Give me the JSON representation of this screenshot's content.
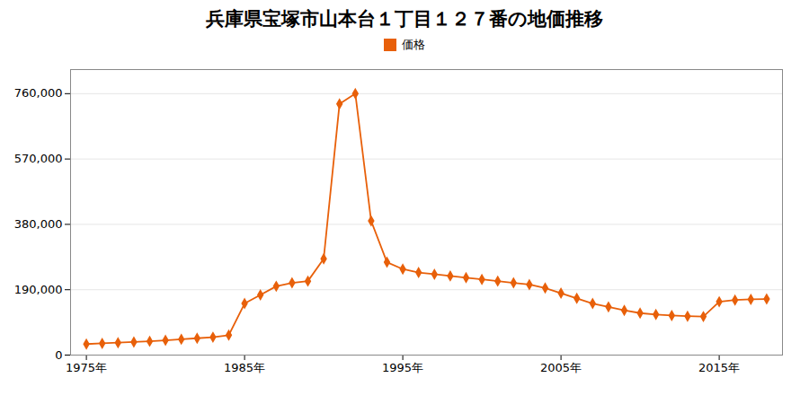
{
  "chart_data": {
    "type": "line",
    "title": "兵庫県宝塚市山本台１丁目１２７番の地価推移",
    "x": [
      1975,
      1976,
      1977,
      1978,
      1979,
      1980,
      1981,
      1982,
      1983,
      1984,
      1985,
      1986,
      1987,
      1988,
      1989,
      1990,
      1991,
      1992,
      1993,
      1994,
      1995,
      1996,
      1997,
      1998,
      1999,
      2000,
      2001,
      2002,
      2003,
      2004,
      2005,
      2006,
      2007,
      2008,
      2009,
      2010,
      2011,
      2012,
      2013,
      2014,
      2015,
      2016,
      2017,
      2018
    ],
    "series": [
      {
        "name": "価格",
        "color": "#e8600a",
        "marker": "diamond",
        "values": [
          32000,
          34000,
          36000,
          38000,
          40000,
          43000,
          46000,
          49000,
          52000,
          58000,
          150000,
          175000,
          200000,
          210000,
          215000,
          280000,
          730000,
          760000,
          390000,
          270000,
          250000,
          240000,
          235000,
          230000,
          225000,
          220000,
          215000,
          210000,
          205000,
          195000,
          180000,
          165000,
          150000,
          140000,
          130000,
          122000,
          118000,
          115000,
          113000,
          112000,
          155000,
          160000,
          162000,
          163000
        ]
      }
    ],
    "xlim": [
      1974,
      2019
    ],
    "xticks": [
      {
        "value": 1975,
        "label": "1975年"
      },
      {
        "value": 1985,
        "label": "1985年"
      },
      {
        "value": 1995,
        "label": "1995年"
      },
      {
        "value": 2005,
        "label": "2005年"
      },
      {
        "value": 2015,
        "label": "2015年"
      }
    ],
    "ylim": [
      0,
      830000
    ],
    "yticks": [
      0,
      {
        "value": 190000,
        "label": "190,000"
      },
      {
        "value": 380000,
        "label": "380,000"
      },
      {
        "value": 570000,
        "label": "570,000"
      },
      {
        "value": 760000,
        "label": "760,000"
      }
    ],
    "grid": "y",
    "legend": "top"
  }
}
